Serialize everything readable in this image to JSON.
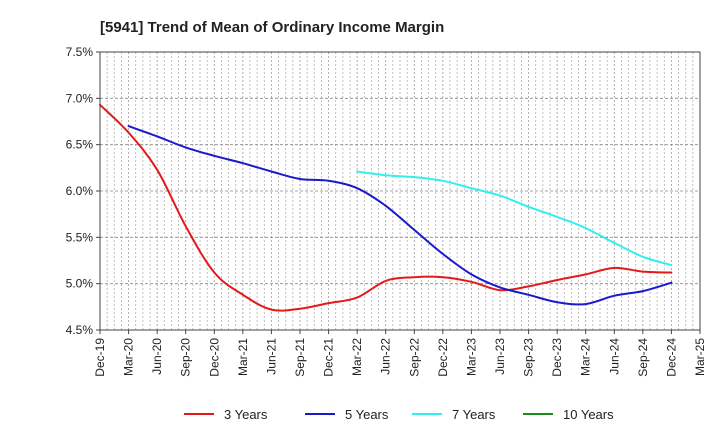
{
  "chart_data": {
    "type": "line",
    "title": "[5941]  Trend of Mean of Ordinary Income Margin",
    "xlabel": "",
    "ylabel": "",
    "x_ticks": [
      "Dec-19",
      "Mar-20",
      "Jun-20",
      "Sep-20",
      "Dec-20",
      "Mar-21",
      "Jun-21",
      "Sep-21",
      "Dec-21",
      "Mar-22",
      "Jun-22",
      "Sep-22",
      "Dec-22",
      "Mar-23",
      "Jun-23",
      "Sep-23",
      "Dec-23",
      "Mar-24",
      "Jun-24",
      "Sep-24",
      "Dec-24",
      "Mar-25"
    ],
    "y_ticks": [
      "4.5%",
      "5.0%",
      "5.5%",
      "6.0%",
      "6.5%",
      "7.0%",
      "7.5%"
    ],
    "y_tick_values": [
      4.5,
      5.0,
      5.5,
      6.0,
      6.5,
      7.0,
      7.5
    ],
    "ylim": [
      4.5,
      7.5
    ],
    "grid": true,
    "legend_position": "bottom",
    "series": [
      {
        "name": "3 Years",
        "color": "#e41a1a",
        "x": [
          "Dec-19",
          "Mar-20",
          "Jun-20",
          "Sep-20",
          "Dec-20",
          "Mar-21",
          "Jun-21",
          "Sep-21",
          "Dec-21",
          "Mar-22",
          "Jun-22",
          "Sep-22",
          "Dec-22",
          "Mar-23",
          "Jun-23",
          "Sep-23",
          "Dec-23",
          "Mar-24",
          "Jun-24",
          "Sep-24",
          "Dec-24"
        ],
        "values": [
          6.93,
          6.63,
          6.23,
          5.62,
          5.12,
          4.88,
          4.72,
          4.73,
          4.79,
          4.85,
          5.03,
          5.07,
          5.07,
          5.02,
          4.93,
          4.97,
          5.04,
          5.1,
          5.17,
          5.13,
          5.12
        ]
      },
      {
        "name": "5 Years",
        "color": "#1a1acd",
        "x": [
          "Dec-19",
          "Mar-20",
          "Jun-20",
          "Sep-20",
          "Dec-20",
          "Mar-21",
          "Jun-21",
          "Sep-21",
          "Dec-21",
          "Mar-22",
          "Jun-22",
          "Sep-22",
          "Dec-22",
          "Mar-23",
          "Jun-23",
          "Sep-23",
          "Dec-23",
          "Mar-24",
          "Jun-24",
          "Sep-24",
          "Dec-24"
        ],
        "values": [
          null,
          6.7,
          6.59,
          6.47,
          6.38,
          6.3,
          6.21,
          6.13,
          6.11,
          6.03,
          5.84,
          5.58,
          5.32,
          5.1,
          4.96,
          4.88,
          4.8,
          4.78,
          4.87,
          4.92,
          5.01
        ]
      },
      {
        "name": "7 Years",
        "color": "#33eeee",
        "x": [
          "Dec-19",
          "Mar-20",
          "Jun-20",
          "Sep-20",
          "Dec-20",
          "Mar-21",
          "Jun-21",
          "Sep-21",
          "Dec-21",
          "Mar-22",
          "Jun-22",
          "Sep-22",
          "Dec-22",
          "Mar-23",
          "Jun-23",
          "Sep-23",
          "Dec-23",
          "Mar-24",
          "Jun-24",
          "Sep-24",
          "Dec-24"
        ],
        "values": [
          null,
          null,
          null,
          null,
          null,
          null,
          null,
          null,
          null,
          6.21,
          6.17,
          6.15,
          6.11,
          6.03,
          5.95,
          5.83,
          5.72,
          5.6,
          5.44,
          5.29,
          5.2
        ]
      },
      {
        "name": "10 Years",
        "color": "#1a8c1a",
        "x": [],
        "values": []
      }
    ]
  }
}
